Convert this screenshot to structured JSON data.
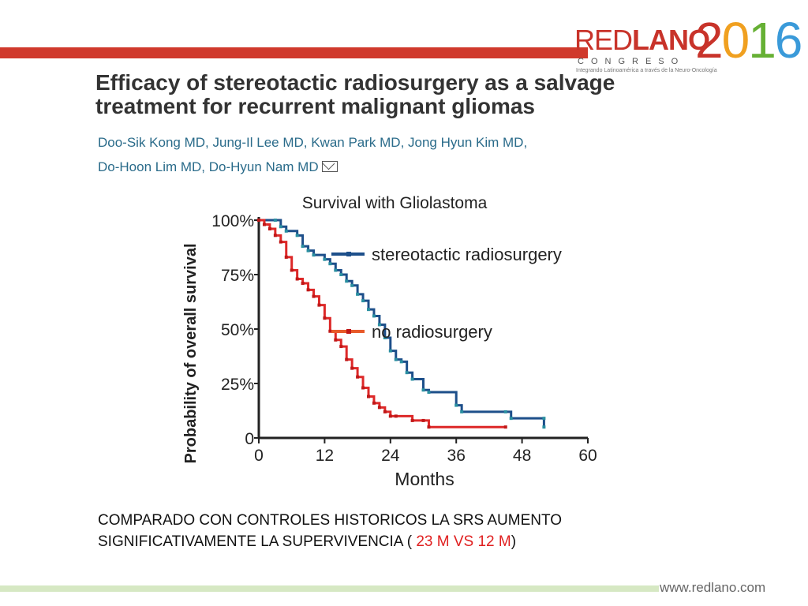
{
  "brand": {
    "red": "RED",
    "lano": "LANO",
    "year": "2016",
    "congreso": "CONGRESO",
    "tagline": "Integrando Latinoamérica a través de la Neuro-Oncología",
    "website": "www.redlano.com"
  },
  "paper": {
    "title_line1": "Efficacy of stereotactic radiosurgery as a salvage",
    "title_line2": "treatment for recurrent malignant gliomas",
    "authors_line1": "Doo-Sik Kong MD,  Jung-Il Lee MD,  Kwan Park MD,  Jong Hyun Kim MD,",
    "authors_line2": "Do-Hoon Lim MD,  Do-Hyun Nam MD"
  },
  "caption": {
    "line1": "COMPARADO CON CONTROLES HISTORICOS LA SRS AUMENTO",
    "line2_pre": "SIGNIFICATIVAMENTE  LA SUPERVIVENCIA ( ",
    "line2_highlight": "23 M VS 12 M",
    "line2_post": ")"
  },
  "colors": {
    "srs": "#1d4f8a",
    "no_rs": "#dd2828",
    "accent_red": "#d0392c",
    "accent_green": "#d6e8c3"
  },
  "chart_data": {
    "type": "line",
    "title": "Survival with Gliolastoma",
    "xlabel": "Months",
    "ylabel": "Probability of overall survival",
    "xlim": [
      0,
      60
    ],
    "ylim": [
      0,
      100
    ],
    "x_ticks": [
      "0",
      "12",
      "24",
      "36",
      "48",
      "60"
    ],
    "y_ticks": [
      "0",
      "25%",
      "50%",
      "75%",
      "100%"
    ],
    "legend_position": "inside-right",
    "series": [
      {
        "name": "stereotactic radiosurgery",
        "points": [
          [
            0,
            100
          ],
          [
            3,
            100
          ],
          [
            4,
            97
          ],
          [
            5,
            95
          ],
          [
            7,
            93
          ],
          [
            8,
            88
          ],
          [
            9,
            86
          ],
          [
            10,
            84
          ],
          [
            12,
            82
          ],
          [
            13,
            80
          ],
          [
            14,
            77
          ],
          [
            15,
            75
          ],
          [
            16,
            72
          ],
          [
            17,
            70
          ],
          [
            18,
            66
          ],
          [
            19,
            63
          ],
          [
            20,
            59
          ],
          [
            21,
            56
          ],
          [
            22,
            52
          ],
          [
            23,
            46
          ],
          [
            24,
            40
          ],
          [
            25,
            36
          ],
          [
            26,
            35
          ],
          [
            27,
            30
          ],
          [
            28,
            27
          ],
          [
            30,
            22
          ],
          [
            31,
            21
          ],
          [
            36,
            15
          ],
          [
            37,
            12
          ],
          [
            45,
            12
          ],
          [
            46,
            9
          ],
          [
            52,
            9
          ],
          [
            52,
            5
          ]
        ]
      },
      {
        "name": "no radiosurgery",
        "points": [
          [
            0,
            100
          ],
          [
            1,
            98
          ],
          [
            2,
            96
          ],
          [
            3,
            93
          ],
          [
            4,
            90
          ],
          [
            5,
            83
          ],
          [
            6,
            77
          ],
          [
            7,
            73
          ],
          [
            8,
            71
          ],
          [
            9,
            68
          ],
          [
            10,
            65
          ],
          [
            11,
            61
          ],
          [
            12,
            55
          ],
          [
            13,
            49
          ],
          [
            14,
            45
          ],
          [
            15,
            42
          ],
          [
            16,
            36
          ],
          [
            17,
            32
          ],
          [
            18,
            28
          ],
          [
            19,
            23
          ],
          [
            20,
            19
          ],
          [
            21,
            16
          ],
          [
            22,
            14
          ],
          [
            23,
            12
          ],
          [
            24,
            10
          ],
          [
            25,
            10
          ],
          [
            28,
            8
          ],
          [
            30,
            8
          ],
          [
            31,
            5
          ],
          [
            45,
            5
          ]
        ]
      }
    ]
  }
}
